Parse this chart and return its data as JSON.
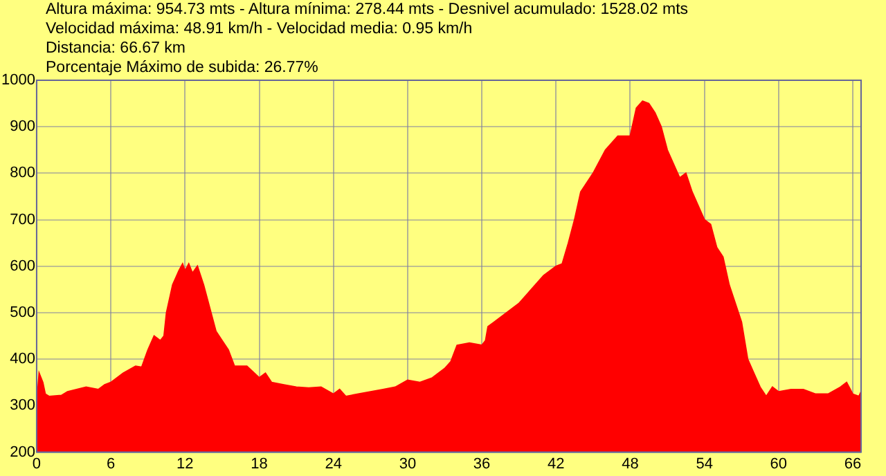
{
  "chart_data": {
    "type": "area",
    "title": "Altura máxima: 954.73 mts - Altura mínima: 278.44 mts - Desnivel acumulado: 1528.02 mts",
    "annotations": [
      "Velocidad máxima: 48.91 km/h - Velocidad media: 0.95 km/h",
      "Distancia: 66.67 km",
      "Porcentaje Máximo de subida: 26.77%"
    ],
    "x": [
      0,
      0.2,
      0.5,
      0.7,
      1,
      2,
      2.5,
      4,
      5,
      5.5,
      6,
      7,
      8,
      8.5,
      9,
      9.5,
      10,
      10.3,
      10.5,
      11,
      11.5,
      11.8,
      12,
      12.3,
      12.6,
      13,
      13.5,
      14,
      14.5,
      15,
      15.5,
      16,
      17,
      18,
      18.5,
      19,
      20,
      21,
      22,
      23,
      24,
      24.5,
      25,
      26,
      28,
      29,
      30,
      31,
      32,
      33,
      33.5,
      34,
      35,
      36,
      36.3,
      36.5,
      37,
      38,
      39,
      40,
      41,
      42,
      42.5,
      43,
      43.5,
      44,
      45,
      46,
      47,
      48,
      48.5,
      49,
      49.5,
      50,
      50.5,
      51,
      52,
      52.5,
      53,
      54,
      54.5,
      55,
      55.5,
      56,
      57,
      57.5,
      58,
      58.5,
      59,
      59.5,
      60,
      61,
      62,
      63,
      64,
      65,
      65.5,
      66,
      66.5,
      66.67
    ],
    "series": [
      {
        "color": "#ff0000",
        "values": [
          300,
          370,
          350,
          325,
          320,
          322,
          330,
          340,
          335,
          345,
          350,
          370,
          385,
          383,
          420,
          450,
          440,
          450,
          500,
          560,
          590,
          605,
          590,
          605,
          585,
          600,
          560,
          510,
          460,
          440,
          420,
          385,
          385,
          360,
          370,
          350,
          345,
          340,
          338,
          340,
          325,
          335,
          320,
          325,
          335,
          340,
          355,
          350,
          360,
          380,
          395,
          430,
          435,
          430,
          440,
          470,
          480,
          500,
          520,
          550,
          580,
          600,
          605,
          650,
          700,
          760,
          800,
          850,
          880,
          880,
          940,
          955,
          950,
          930,
          900,
          850,
          790,
          800,
          760,
          700,
          690,
          640,
          620,
          560,
          480,
          400,
          370,
          340,
          320,
          340,
          330,
          335,
          335,
          325,
          325,
          340,
          350,
          325,
          320,
          330
        ]
      }
    ],
    "xlim": [
      0,
      66.67
    ],
    "ylim": [
      200,
      1000
    ],
    "xticks": [
      0,
      6,
      12,
      18,
      24,
      30,
      36,
      42,
      48,
      54,
      60,
      66
    ],
    "yticks": [
      200,
      300,
      400,
      500,
      600,
      700,
      800,
      900,
      1000
    ],
    "grid": true,
    "legend": false
  }
}
